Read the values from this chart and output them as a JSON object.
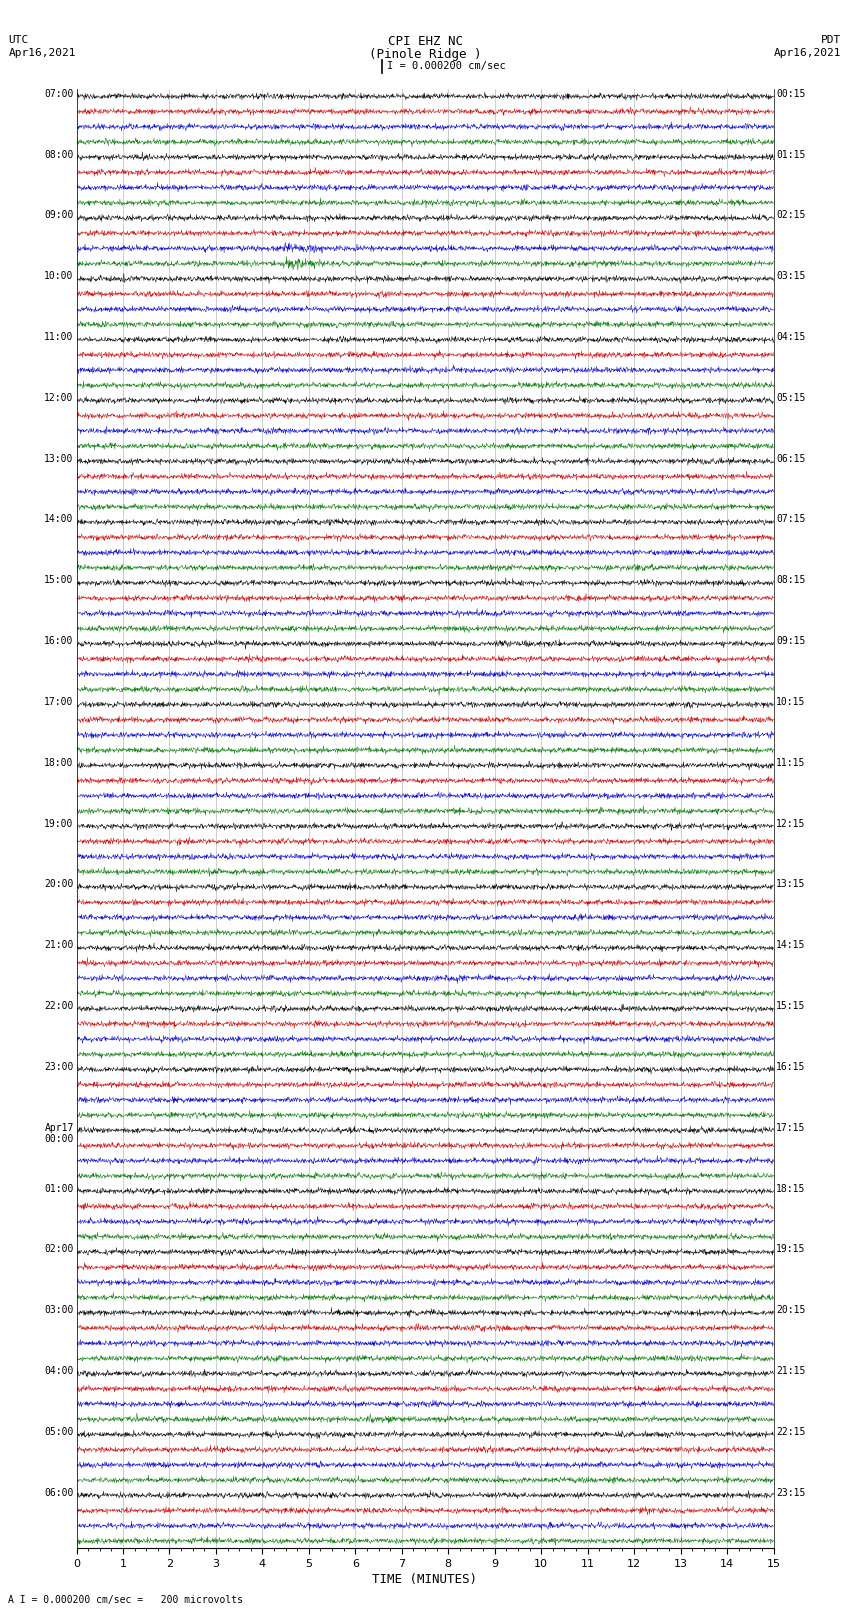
{
  "title_line1": "CPI EHZ NC",
  "title_line2": "(Pinole Ridge )",
  "scale_label": "I = 0.000200 cm/sec",
  "footer_label": "A I = 0.000200 cm/sec =   200 microvolts",
  "utc_label": "UTC\nApr16,2021",
  "pdt_label": "PDT\nApr16,2021",
  "xlabel": "TIME (MINUTES)",
  "bg_color": "#ffffff",
  "trace_colors": [
    "#000000",
    "#cc0000",
    "#0000cc",
    "#007700"
  ],
  "left_times": [
    "07:00",
    "08:00",
    "09:00",
    "10:00",
    "11:00",
    "12:00",
    "13:00",
    "14:00",
    "15:00",
    "16:00",
    "17:00",
    "18:00",
    "19:00",
    "20:00",
    "21:00",
    "22:00",
    "23:00",
    "Apr17\n00:00",
    "01:00",
    "02:00",
    "03:00",
    "04:00",
    "05:00",
    "06:00"
  ],
  "right_times": [
    "00:15",
    "01:15",
    "02:15",
    "03:15",
    "04:15",
    "05:15",
    "06:15",
    "07:15",
    "08:15",
    "09:15",
    "10:15",
    "11:15",
    "12:15",
    "13:15",
    "14:15",
    "15:15",
    "16:15",
    "17:15",
    "18:15",
    "19:15",
    "20:15",
    "21:15",
    "22:15",
    "23:15"
  ],
  "n_rows": 24,
  "traces_per_row": 4,
  "n_points": 1800,
  "x_min": 0,
  "x_max": 15,
  "amplitude_base": 0.25,
  "seed": 42,
  "grid_color": "#aaaaaa",
  "grid_linewidth": 0.5
}
